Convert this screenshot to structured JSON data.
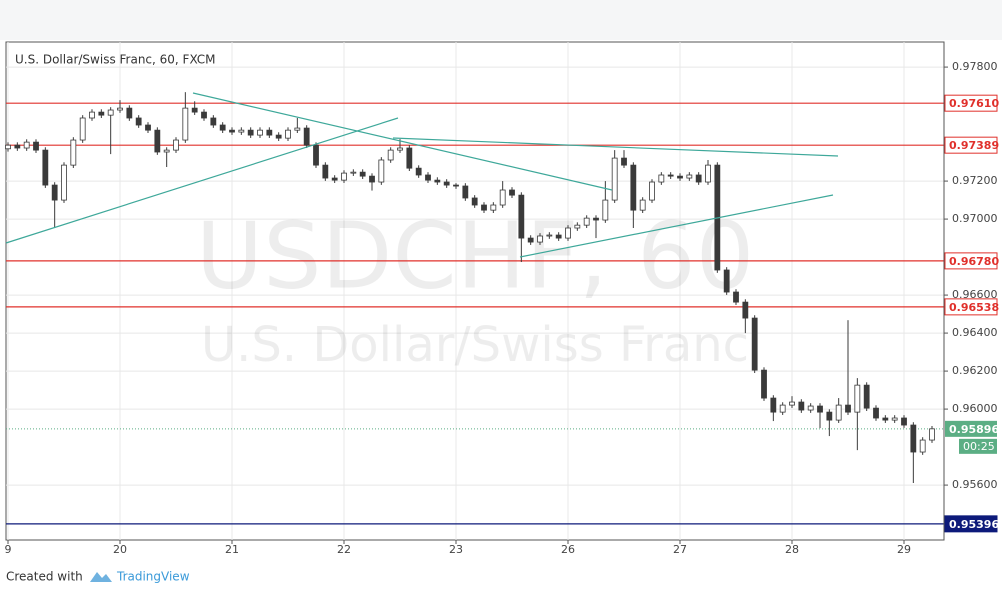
{
  "chart_data": {
    "type": "candlestick",
    "title": "U.S. Dollar/Swiss Franc, 60, FXCM",
    "watermark": [
      "USDCHF, 60",
      "U.S. Dollar/Swiss Franc"
    ],
    "up_color": "#ffffff",
    "down_color": "#3a3a3a",
    "wick_color": "#3a3a3a",
    "x": [
      0,
      2,
      4,
      6,
      8,
      10,
      12,
      14,
      16,
      18,
      20,
      22,
      24,
      26,
      28,
      30,
      32,
      34,
      36,
      38,
      40,
      42,
      44,
      46,
      48,
      50,
      52,
      54,
      56,
      58,
      60,
      62,
      64,
      66,
      68,
      70,
      72,
      74,
      76,
      78,
      80,
      82,
      84,
      86,
      88,
      90,
      92,
      94,
      96,
      98,
      100,
      102,
      104,
      106,
      108,
      110,
      112,
      114,
      116,
      118,
      120,
      122,
      124,
      126,
      128,
      130,
      132,
      134,
      136,
      138,
      140,
      142,
      144,
      146,
      148,
      150,
      152,
      154,
      156,
      158,
      160,
      162,
      164,
      166,
      168,
      170,
      172,
      174,
      176,
      178,
      180,
      182,
      184,
      186,
      188,
      190,
      192,
      194,
      196,
      198
    ],
    "open": [
      0.9737,
      0.97389,
      0.97374,
      0.97405,
      0.97363,
      0.97179,
      0.971,
      0.97284,
      0.97416,
      0.97532,
      0.97563,
      0.97547,
      0.97574,
      0.97584,
      0.97532,
      0.97495,
      0.97468,
      0.97353,
      0.97363,
      0.97416,
      0.97584,
      0.97563,
      0.97532,
      0.97495,
      0.97468,
      0.97458,
      0.97468,
      0.97442,
      0.97468,
      0.97442,
      0.97426,
      0.97468,
      0.97479,
      0.97389,
      0.97284,
      0.97216,
      0.97205,
      0.97242,
      0.97247,
      0.97226,
      0.97195,
      0.97311,
      0.97363,
      0.97374,
      0.97268,
      0.97232,
      0.97205,
      0.97195,
      0.97179,
      0.97174,
      0.97111,
      0.97074,
      0.97047,
      0.97074,
      0.97153,
      0.97126,
      0.969,
      0.96879,
      0.96911,
      0.96916,
      0.969,
      0.96953,
      0.96968,
      0.97005,
      0.96995,
      0.971,
      0.97321,
      0.97284,
      0.97047,
      0.971,
      0.97195,
      0.97232,
      0.97226,
      0.97216,
      0.97232,
      0.97195,
      0.97284,
      0.96732,
      0.96616,
      0.96563,
      0.96479,
      0.96205,
      0.96058,
      0.95984,
      0.96021,
      0.96037,
      0.95995,
      0.96016,
      0.95984,
      0.95942,
      0.96021,
      0.95984,
      0.96126,
      0.96005,
      0.95953,
      0.95942,
      0.95953,
      0.95916,
      0.95774,
      0.95837
    ],
    "high": [
      0.97404,
      0.97404,
      0.9742,
      0.9742,
      0.97378,
      0.97194,
      0.97299,
      0.97431,
      0.97547,
      0.97578,
      0.97578,
      0.97589,
      0.97626,
      0.97599,
      0.97547,
      0.9751,
      0.97483,
      0.97378,
      0.97431,
      0.97668,
      0.9762,
      0.97578,
      0.97547,
      0.9751,
      0.97483,
      0.97483,
      0.97483,
      0.97483,
      0.97483,
      0.97457,
      0.97483,
      0.97532,
      0.97494,
      0.97404,
      0.97299,
      0.97231,
      0.97257,
      0.97262,
      0.97262,
      0.97241,
      0.97326,
      0.97378,
      0.97421,
      0.97389,
      0.97283,
      0.97247,
      0.9722,
      0.9721,
      0.97189,
      0.97189,
      0.97126,
      0.97089,
      0.97089,
      0.972,
      0.97168,
      0.97141,
      0.96915,
      0.96926,
      0.96931,
      0.96931,
      0.96968,
      0.96983,
      0.9702,
      0.9702,
      0.972,
      0.97363,
      0.97363,
      0.97299,
      0.97115,
      0.9721,
      0.97247,
      0.97247,
      0.97241,
      0.97247,
      0.97247,
      0.97311,
      0.97299,
      0.96747,
      0.96631,
      0.96578,
      0.96494,
      0.9622,
      0.96073,
      0.96036,
      0.96068,
      0.96052,
      0.96031,
      0.96031,
      0.95999,
      0.96058,
      0.96468,
      0.96163,
      0.96141,
      0.9602,
      0.95968,
      0.95968,
      0.95968,
      0.95931,
      0.95852,
      0.95911
    ],
    "low": [
      0.97355,
      0.97359,
      0.97359,
      0.97348,
      0.97164,
      0.96953,
      0.97085,
      0.97269,
      0.97401,
      0.97517,
      0.97532,
      0.97342,
      0.97559,
      0.97517,
      0.9748,
      0.97453,
      0.97338,
      0.97274,
      0.97348,
      0.97401,
      0.97548,
      0.97517,
      0.9748,
      0.97453,
      0.97443,
      0.97443,
      0.97427,
      0.97427,
      0.97427,
      0.97411,
      0.97411,
      0.97453,
      0.97374,
      0.97269,
      0.97201,
      0.9719,
      0.9719,
      0.97227,
      0.97211,
      0.9715,
      0.9718,
      0.97296,
      0.97348,
      0.97253,
      0.97217,
      0.9719,
      0.9718,
      0.97164,
      0.97159,
      0.97096,
      0.97059,
      0.97032,
      0.97032,
      0.97059,
      0.97111,
      0.96774,
      0.96864,
      0.96864,
      0.96896,
      0.96885,
      0.96885,
      0.96938,
      0.96953,
      0.969,
      0.9698,
      0.97085,
      0.97269,
      0.96953,
      0.97032,
      0.97085,
      0.9718,
      0.97211,
      0.97201,
      0.97201,
      0.9718,
      0.9718,
      0.96717,
      0.96601,
      0.96548,
      0.964,
      0.9619,
      0.96043,
      0.95937,
      0.95969,
      0.96006,
      0.9598,
      0.9598,
      0.959,
      0.95858,
      0.95927,
      0.95969,
      0.95784,
      0.9599,
      0.95938,
      0.95927,
      0.95927,
      0.95901,
      0.95611,
      0.95759,
      0.95822
    ],
    "close": [
      0.97389,
      0.97374,
      0.97405,
      0.97363,
      0.97179,
      0.971,
      0.97284,
      0.97416,
      0.97532,
      0.97563,
      0.97547,
      0.97574,
      0.97584,
      0.97532,
      0.97495,
      0.97468,
      0.97353,
      0.97363,
      0.97416,
      0.97584,
      0.97563,
      0.97532,
      0.97495,
      0.97468,
      0.97458,
      0.97468,
      0.97442,
      0.97468,
      0.97442,
      0.97426,
      0.97468,
      0.97479,
      0.97389,
      0.97284,
      0.97216,
      0.97205,
      0.97242,
      0.97247,
      0.97226,
      0.97195,
      0.97311,
      0.97363,
      0.97374,
      0.97268,
      0.97232,
      0.97205,
      0.97195,
      0.97179,
      0.97174,
      0.97111,
      0.97074,
      0.97047,
      0.97074,
      0.97153,
      0.97126,
      0.969,
      0.96879,
      0.96911,
      0.96916,
      0.969,
      0.96953,
      0.96968,
      0.97005,
      0.96995,
      0.971,
      0.97321,
      0.97284,
      0.97047,
      0.971,
      0.97195,
      0.97232,
      0.97226,
      0.97216,
      0.97232,
      0.97195,
      0.97284,
      0.96732,
      0.96616,
      0.96563,
      0.96479,
      0.96205,
      0.96058,
      0.95984,
      0.96021,
      0.96037,
      0.95995,
      0.96016,
      0.95984,
      0.95942,
      0.96021,
      0.95984,
      0.96126,
      0.96005,
      0.95953,
      0.95942,
      0.95953,
      0.95916,
      0.95774,
      0.95837,
      0.95896
    ],
    "xlim": [
      -0.43,
      200.57
    ],
    "xticks": [
      {
        "value": 0,
        "label": "9"
      },
      {
        "value": 24,
        "label": "20"
      },
      {
        "value": 48,
        "label": "21"
      },
      {
        "value": 72,
        "label": "22"
      },
      {
        "value": 96,
        "label": "23"
      },
      {
        "value": 120,
        "label": "26"
      },
      {
        "value": 144,
        "label": "27"
      },
      {
        "value": 168,
        "label": "28"
      },
      {
        "value": 192,
        "label": "29"
      }
    ],
    "ylim": [
      0.95311,
      0.97932
    ],
    "yticks": [
      {
        "value": 0.978,
        "label": "0.97800"
      },
      {
        "value": 0.972,
        "label": "0.97200"
      },
      {
        "value": 0.97,
        "label": "0.97000"
      },
      {
        "value": 0.966,
        "label": "0.96600"
      },
      {
        "value": 0.964,
        "label": "0.96400"
      },
      {
        "value": 0.962,
        "label": "0.96200"
      },
      {
        "value": 0.96,
        "label": "0.96000"
      },
      {
        "value": 0.956,
        "label": "0.95600"
      }
    ],
    "grid": true,
    "levels": [
      {
        "price": {
          "value": 0.9761,
          "label": "0.97610"
        },
        "color": "#e0302b"
      },
      {
        "price": 0.97389,
        "color": "#e0302b"
      },
      {
        "price": {
          "value": 0.9678,
          "label": "0.96780"
        },
        "color": "#e0302b"
      },
      {
        "price": 0.96538,
        "color": "#e0302b"
      },
      {
        "price": 0.95396,
        "color": "#0d1a7a"
      }
    ],
    "last_price": 0.95896,
    "last_color": "#5bae84",
    "countdown": "00:25"
  },
  "footer": {
    "prefix": "Created with",
    "brand": "TradingView"
  }
}
